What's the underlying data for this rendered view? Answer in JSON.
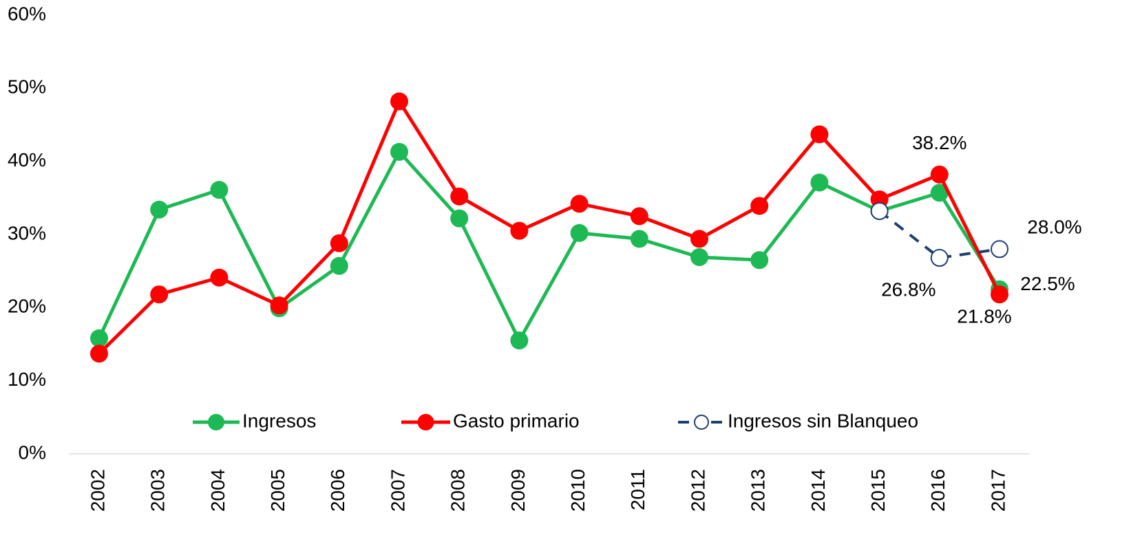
{
  "chart_data": {
    "type": "line",
    "categories": [
      "2002",
      "2003",
      "2004",
      "2005",
      "2006",
      "2007",
      "2008",
      "2009",
      "2010",
      "2011",
      "2012",
      "2013",
      "2014",
      "2015",
      "2016",
      "2017"
    ],
    "series": [
      {
        "name": "Ingresos",
        "color": "#1db954",
        "values": [
          15.8,
          33.4,
          36.1,
          19.9,
          25.7,
          41.3,
          32.2,
          15.5,
          30.2,
          29.4,
          26.9,
          26.5,
          37.1,
          33.2,
          35.7,
          22.5
        ],
        "value_labels": [
          null,
          null,
          null,
          null,
          null,
          null,
          null,
          null,
          null,
          null,
          null,
          null,
          null,
          null,
          null,
          "22.5%"
        ]
      },
      {
        "name": "Gasto primario",
        "color": "#ff0000",
        "values": [
          13.7,
          21.8,
          24.1,
          20.3,
          28.8,
          48.2,
          35.2,
          30.5,
          34.2,
          32.5,
          29.4,
          33.9,
          43.7,
          34.8,
          38.2,
          21.8
        ],
        "value_labels": [
          null,
          null,
          null,
          null,
          null,
          null,
          null,
          null,
          null,
          null,
          null,
          null,
          null,
          null,
          "38.2%",
          "21.8%"
        ]
      },
      {
        "name": "Ingresos sin Blanqueo",
        "color": "#1f3e6e",
        "dashed": true,
        "hollow": true,
        "values": [
          null,
          null,
          null,
          null,
          null,
          null,
          null,
          null,
          null,
          null,
          null,
          null,
          null,
          33.2,
          26.8,
          28.0
        ],
        "value_labels": [
          null,
          null,
          null,
          null,
          null,
          null,
          null,
          null,
          null,
          null,
          null,
          null,
          null,
          null,
          "26.8%",
          "28.0%"
        ]
      }
    ],
    "ylim": [
      0,
      60
    ],
    "yticks": [
      {
        "value": 0,
        "label": "0%"
      },
      {
        "value": 10,
        "label": "10%"
      },
      {
        "value": 20,
        "label": "20%"
      },
      {
        "value": 30,
        "label": "30%"
      },
      {
        "value": 40,
        "label": "40%"
      },
      {
        "value": 50,
        "label": "50%"
      },
      {
        "value": 60,
        "label": "60%"
      }
    ],
    "grid": false,
    "legend": "bottom"
  }
}
